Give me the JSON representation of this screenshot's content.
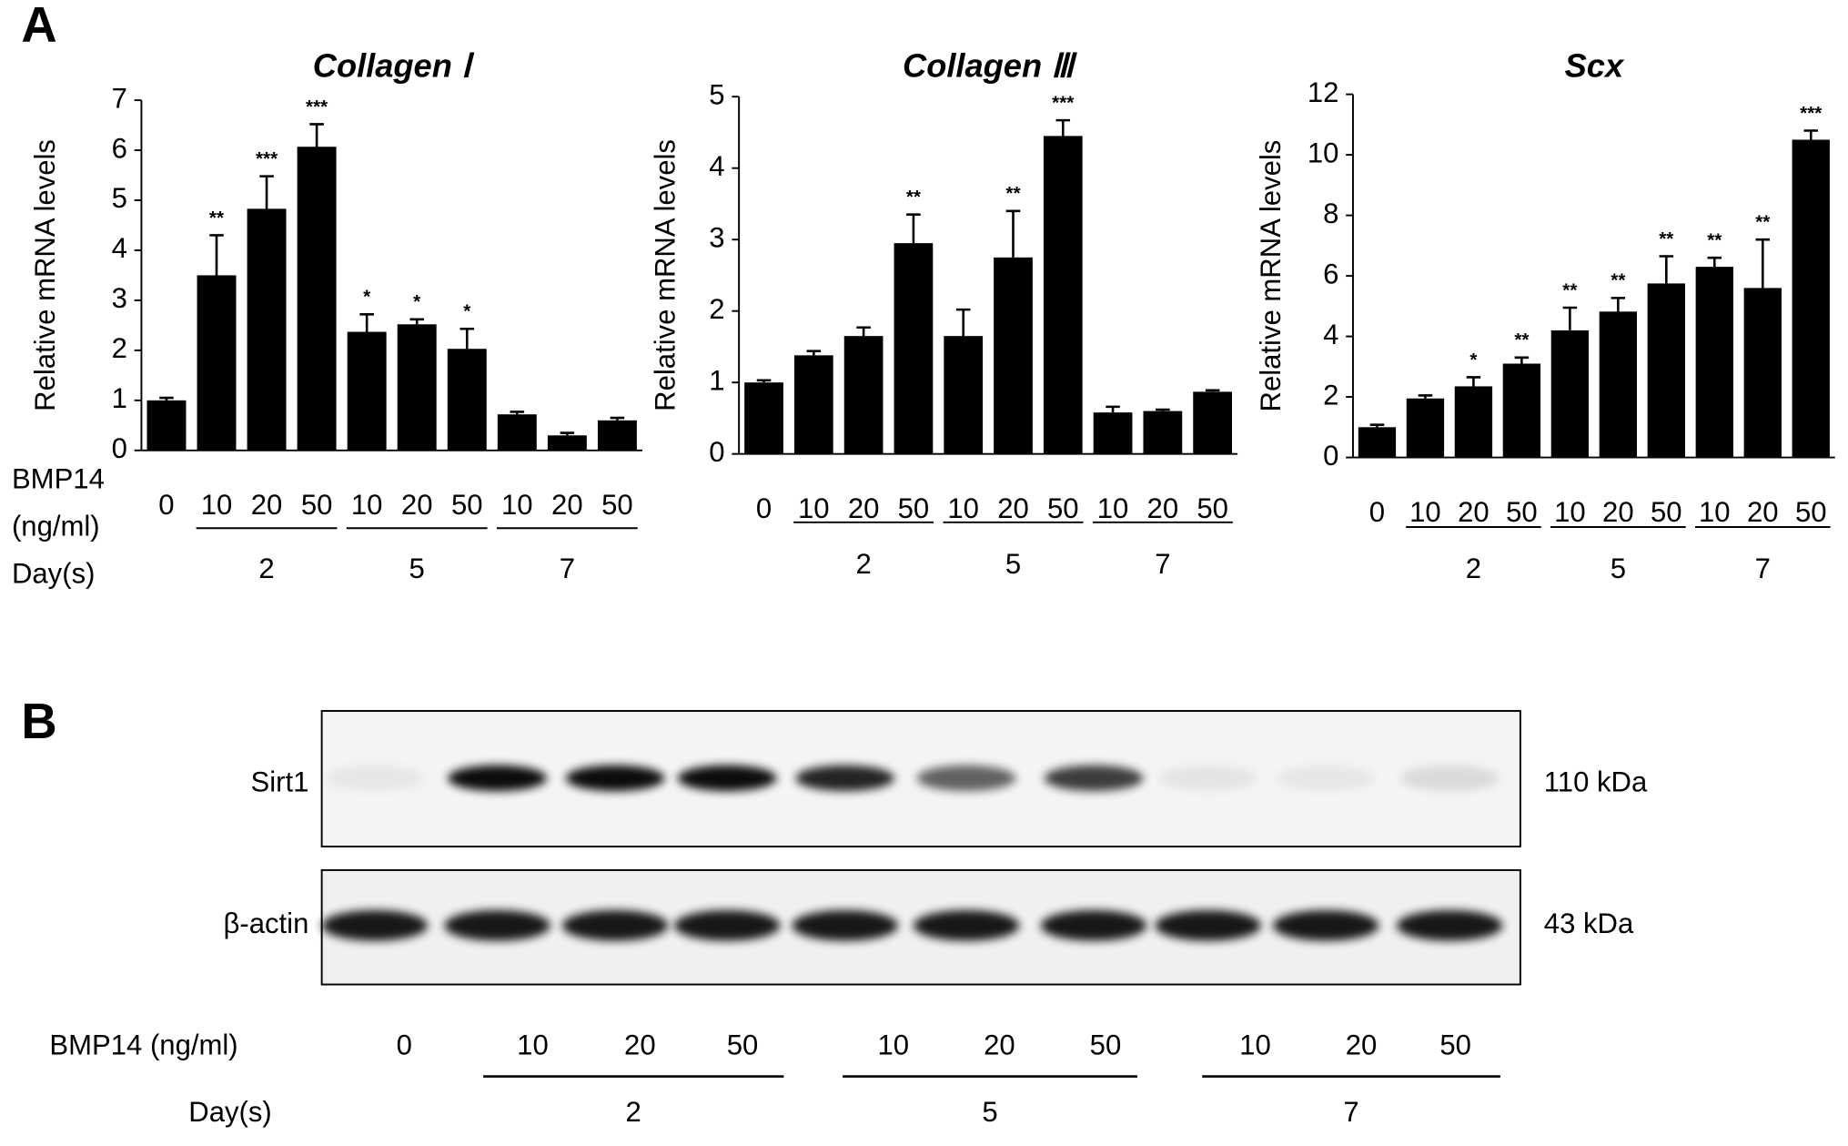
{
  "panel_a": {
    "label": "A",
    "dose_label": [
      "BMP14",
      "(ng/ml)"
    ],
    "day_label": "Day(s)"
  },
  "chart_data": [
    {
      "type": "bar",
      "title": "Collagen Ⅰ",
      "y_label": "Relative mRNA levels",
      "categories": [
        "0",
        "10",
        "20",
        "50",
        "10",
        "20",
        "50",
        "10",
        "20",
        "50"
      ],
      "days": [
        "2",
        "5",
        "7"
      ],
      "values": [
        1.0,
        3.5,
        4.83,
        6.07,
        2.37,
        2.52,
        2.03,
        0.72,
        0.3,
        0.6
      ],
      "errors": [
        0.05,
        0.8,
        0.65,
        0.45,
        0.35,
        0.1,
        0.4,
        0.05,
        0.05,
        0.05
      ],
      "annotations": [
        null,
        "**",
        "***",
        "***",
        "*",
        "*",
        "*",
        null,
        null,
        null
      ],
      "color": "#000000",
      "ylim": [
        0,
        7
      ],
      "yticks": [
        0,
        1,
        2,
        3,
        4,
        5,
        6,
        7
      ]
    },
    {
      "type": "bar",
      "title": "Collagen Ⅲ",
      "y_label": "Relative mRNA levels",
      "categories": [
        "0",
        "10",
        "20",
        "50",
        "10",
        "20",
        "50",
        "10",
        "20",
        "50"
      ],
      "days": [
        "2",
        "5",
        "7"
      ],
      "values": [
        1.0,
        1.38,
        1.65,
        2.95,
        1.65,
        2.75,
        4.45,
        0.58,
        0.6,
        0.87
      ],
      "errors": [
        0.03,
        0.06,
        0.12,
        0.4,
        0.37,
        0.65,
        0.22,
        0.08,
        0.02,
        0.02
      ],
      "annotations": [
        null,
        null,
        null,
        "**",
        null,
        "**",
        "***",
        null,
        null,
        null
      ],
      "color": "#000000",
      "ylim": [
        0,
        5
      ],
      "yticks": [
        0,
        1,
        2,
        3,
        4,
        5
      ]
    },
    {
      "type": "bar",
      "title": "Scx",
      "y_label": "Relative mRNA levels",
      "categories": [
        "0",
        "10",
        "20",
        "50",
        "10",
        "20",
        "50",
        "10",
        "20",
        "50"
      ],
      "days": [
        "2",
        "5",
        "7"
      ],
      "values": [
        1.0,
        1.95,
        2.35,
        3.1,
        4.2,
        4.82,
        5.75,
        6.3,
        5.6,
        10.5
      ],
      "errors": [
        0.08,
        0.1,
        0.3,
        0.2,
        0.75,
        0.45,
        0.9,
        0.3,
        1.6,
        0.3
      ],
      "annotations": [
        null,
        null,
        "*",
        "**",
        "**",
        "**",
        "**",
        "**",
        "**",
        "***"
      ],
      "color": "#000000",
      "ylim": [
        0,
        12
      ],
      "yticks": [
        0,
        2,
        4,
        6,
        8,
        10,
        12
      ]
    }
  ],
  "blot": {
    "label": "B",
    "rows": [
      {
        "name": "Sirt1",
        "size": "110 kDa"
      },
      {
        "name": "β-actin",
        "size": "43 kDa"
      }
    ],
    "dose_label": "BMP14 (ng/ml)",
    "day_label": "Day(s)",
    "lanes": [
      "0",
      "10",
      "20",
      "50",
      "10",
      "20",
      "50",
      "10",
      "20",
      "50"
    ],
    "days": [
      "2",
      "5",
      "7"
    ]
  }
}
